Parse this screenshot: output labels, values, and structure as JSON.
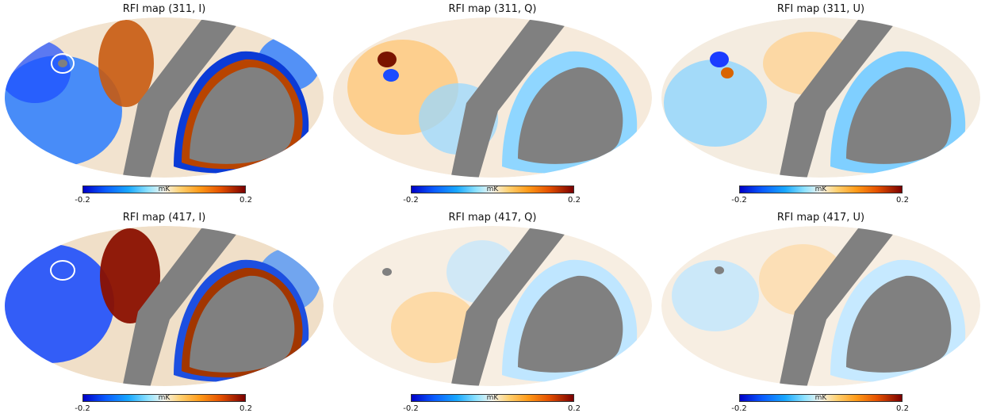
{
  "panels": [
    {
      "title": "RFI map (311, I)",
      "unit": "mK",
      "min_label": "-0.2",
      "max_label": "0.2"
    },
    {
      "title": "RFI map (311, Q)",
      "unit": "mK",
      "min_label": "-0.2",
      "max_label": "0.2"
    },
    {
      "title": "RFI map (311, U)",
      "unit": "mK",
      "min_label": "-0.2",
      "max_label": "0.2"
    },
    {
      "title": "RFI map (417, I)",
      "unit": "mK",
      "min_label": "-0.2",
      "max_label": "0.2"
    },
    {
      "title": "RFI map (417, Q)",
      "unit": "mK",
      "min_label": "-0.2",
      "max_label": "0.2"
    },
    {
      "title": "RFI map (417, U)",
      "unit": "mK",
      "min_label": "-0.2",
      "max_label": "0.2"
    }
  ],
  "colors": {
    "masked": "#808080",
    "cold": "#0a3cff",
    "cool": "#3fb8ff",
    "neutral": "#f6f3ea",
    "warm": "#ffb24a",
    "hot": "#d94800",
    "very_hot": "#8a0a00"
  }
}
